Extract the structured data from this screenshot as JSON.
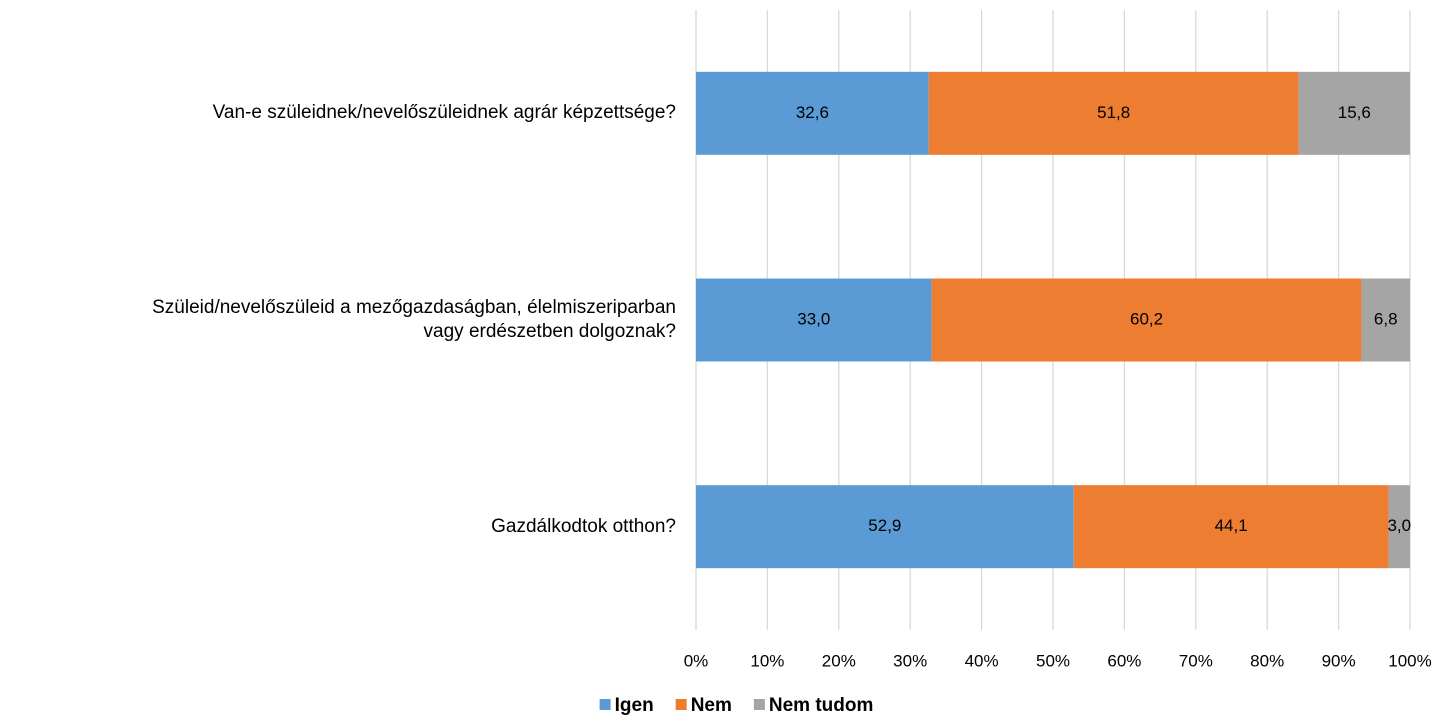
{
  "chart_data": {
    "type": "stacked-barh",
    "categories": [
      "Van-e szüleidnek/nevelőszüleidnek agrár képzettsége?",
      "Szüleid/nevelőszüleid a mezőgazdaságban, élelmiszeriparban\nvagy erdészetben dolgoznak?",
      "Gazdálkodtok otthon?"
    ],
    "series": [
      {
        "name": "Igen",
        "color": "#5b9bd5",
        "values": [
          32.6,
          33.0,
          52.9
        ],
        "value_labels": [
          "32,6",
          "33,0",
          "52,9"
        ]
      },
      {
        "name": "Nem",
        "color": "#ed7d31",
        "values": [
          51.8,
          60.2,
          44.1
        ],
        "value_labels": [
          "51,8",
          "60,2",
          "44,1"
        ]
      },
      {
        "name": "Nem tudom",
        "color": "#a5a5a5",
        "values": [
          15.6,
          6.8,
          3.0
        ],
        "value_labels": [
          "15,6",
          "6,8",
          "3,0"
        ]
      }
    ],
    "xlim": [
      0,
      100
    ],
    "xticks": [
      {
        "value": 0,
        "label": "0%"
      },
      {
        "value": 10,
        "label": "10%"
      },
      {
        "value": 20,
        "label": "20%"
      },
      {
        "value": 30,
        "label": "30%"
      },
      {
        "value": 40,
        "label": "40%"
      },
      {
        "value": 50,
        "label": "50%"
      },
      {
        "value": 60,
        "label": "60%"
      },
      {
        "value": 70,
        "label": "70%"
      },
      {
        "value": 80,
        "label": "80%"
      },
      {
        "value": 90,
        "label": "90%"
      },
      {
        "value": 100,
        "label": "100%"
      }
    ],
    "grid": true,
    "legend": "bottom"
  }
}
